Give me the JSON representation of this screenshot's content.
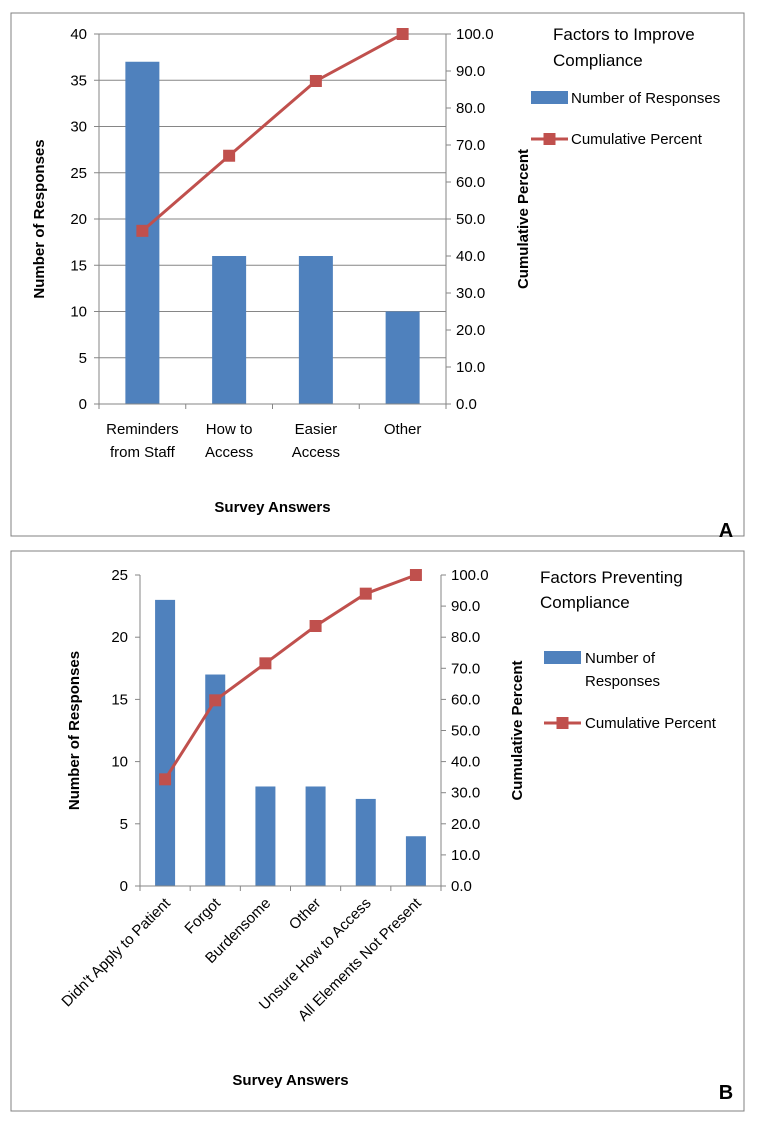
{
  "chart_data": [
    {
      "type": "bar",
      "panel_label": "A",
      "title_lines": [
        "Factors to Improve",
        "Compliance"
      ],
      "categories": [
        [
          "Reminders",
          "from Staff"
        ],
        [
          "How to",
          "Access"
        ],
        [
          "Easier",
          "Access"
        ],
        [
          "Other"
        ]
      ],
      "xlabel": "Survey Answers",
      "ylabel": "Number of Responses",
      "y2label": "Cumulative Percent",
      "ylim": [
        0,
        40
      ],
      "y2lim": [
        0,
        100
      ],
      "yticks": [
        "0",
        "5",
        "10",
        "15",
        "20",
        "25",
        "30",
        "35",
        "40"
      ],
      "y2ticks": [
        "0.0",
        "10.0",
        "20.0",
        "30.0",
        "40.0",
        "50.0",
        "60.0",
        "70.0",
        "80.0",
        "90.0",
        "100.0"
      ],
      "grid": true,
      "legend_position": "right",
      "series": [
        {
          "name": "Number of Responses",
          "kind": "bar",
          "axis": "left",
          "color": "#4F81BD",
          "values": [
            37,
            16,
            16,
            10
          ]
        },
        {
          "name": "Cumulative Percent",
          "kind": "line",
          "axis": "right",
          "color": "#C0504D",
          "values": [
            46.8,
            67.1,
            87.3,
            100.0
          ]
        }
      ],
      "legend_lines": [
        [
          "Number of Responses"
        ],
        [
          "Cumulative Percent"
        ]
      ]
    },
    {
      "type": "bar",
      "panel_label": "B",
      "title_lines": [
        "Factors Preventing",
        "Compliance"
      ],
      "categories": [
        [
          "Didn't Apply to Patient"
        ],
        [
          "Forgot"
        ],
        [
          "Burdensome"
        ],
        [
          "Other"
        ],
        [
          "Unsure How to Access"
        ],
        [
          "All Elements Not Present"
        ]
      ],
      "xlabel": "Survey Answers",
      "ylabel": "Number of Responses",
      "y2label": "Cumulative Percent",
      "ylim": [
        0,
        25
      ],
      "y2lim": [
        0,
        100
      ],
      "yticks": [
        "0",
        "5",
        "10",
        "15",
        "20",
        "25"
      ],
      "y2ticks": [
        "0.0",
        "10.0",
        "20.0",
        "30.0",
        "40.0",
        "50.0",
        "60.0",
        "70.0",
        "80.0",
        "90.0",
        "100.0"
      ],
      "grid": false,
      "legend_position": "right",
      "series": [
        {
          "name": "Number of Responses",
          "kind": "bar",
          "axis": "left",
          "color": "#4F81BD",
          "values": [
            23,
            17,
            8,
            8,
            7,
            4
          ]
        },
        {
          "name": "Cumulative Percent",
          "kind": "line",
          "axis": "right",
          "color": "#C0504D",
          "values": [
            34.3,
            59.7,
            71.6,
            83.6,
            94.0,
            100.0
          ]
        }
      ],
      "legend_lines": [
        [
          "Number of",
          "Responses"
        ],
        [
          "Cumulative Percent"
        ]
      ]
    }
  ]
}
